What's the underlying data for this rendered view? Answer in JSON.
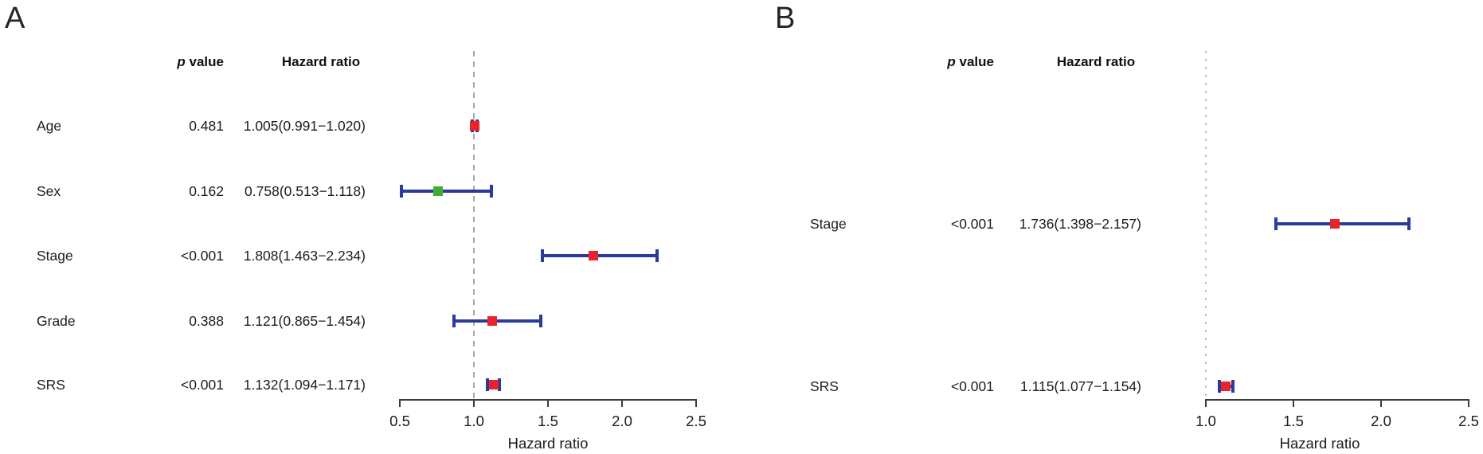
{
  "colors": {
    "red": "#e8232a",
    "green": "#3fae37",
    "blue": "#2c3a9e",
    "axis": "#3c3c3c",
    "ref_dashed_gray": "#a8a8a8",
    "ref_dotted_gray": "#c4c4c4"
  },
  "chart_data": [
    {
      "type": "forest",
      "panel_label": "A",
      "columns": {
        "p_italic": "p",
        "p_rest": " value",
        "hr": "Hazard ratio"
      },
      "rows": [
        {
          "label": "Age",
          "p_value": "0.481",
          "hr_text": "1.005(0.991−1.020)",
          "estimate": 1.005,
          "ci_lower": 0.991,
          "ci_upper": 1.02,
          "marker": "red"
        },
        {
          "label": "Sex",
          "p_value": "0.162",
          "hr_text": "0.758(0.513−1.118)",
          "estimate": 0.758,
          "ci_lower": 0.513,
          "ci_upper": 1.118,
          "marker": "green"
        },
        {
          "label": "Stage",
          "p_value": "<0.001",
          "hr_text": "1.808(1.463−2.234)",
          "estimate": 1.808,
          "ci_lower": 1.463,
          "ci_upper": 2.234,
          "marker": "red"
        },
        {
          "label": "Grade",
          "p_value": "0.388",
          "hr_text": "1.121(0.865−1.454)",
          "estimate": 1.121,
          "ci_lower": 0.865,
          "ci_upper": 1.454,
          "marker": "red"
        },
        {
          "label": "SRS",
          "p_value": "<0.001",
          "hr_text": "1.132(1.094−1.171)",
          "estimate": 1.132,
          "ci_lower": 1.094,
          "ci_upper": 1.171,
          "marker": "red"
        }
      ],
      "x_ticks": [
        "0.5",
        "1.0",
        "1.5",
        "2.0",
        "2.5"
      ],
      "xlim": [
        0.5,
        2.5
      ],
      "xlabel": "Hazard ratio",
      "ref_line": {
        "value": 1.0,
        "style": "dashed"
      },
      "legend": "none",
      "grid": "off"
    },
    {
      "type": "forest",
      "panel_label": "B",
      "columns": {
        "p_italic": "p",
        "p_rest": " value",
        "hr": "Hazard ratio"
      },
      "rows": [
        {
          "label": "Stage",
          "p_value": "<0.001",
          "hr_text": "1.736(1.398−2.157)",
          "estimate": 1.736,
          "ci_lower": 1.398,
          "ci_upper": 2.157,
          "marker": "red"
        },
        {
          "label": "SRS",
          "p_value": "<0.001",
          "hr_text": "1.115(1.077−1.154)",
          "estimate": 1.115,
          "ci_lower": 1.077,
          "ci_upper": 1.154,
          "marker": "red"
        }
      ],
      "x_ticks": [
        "1.0",
        "1.5",
        "2.0",
        "2.5"
      ],
      "xlim": [
        1.0,
        2.5
      ],
      "xlabel": "Hazard ratio",
      "ref_line": {
        "value": 1.0,
        "style": "dotted"
      },
      "legend": "none",
      "grid": "off"
    }
  ]
}
